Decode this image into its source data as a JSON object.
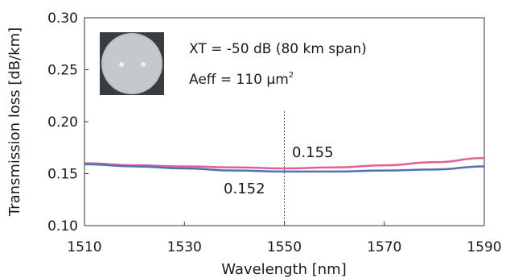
{
  "chart_data": {
    "type": "line",
    "xlabel": "Wavelength [nm]",
    "ylabel": "Transmission loss [dB/km]",
    "xlim": [
      1510,
      1590
    ],
    "ylim": [
      0.1,
      0.3
    ],
    "x_ticks": [
      "1510",
      "1530",
      "1550",
      "1570",
      "1590"
    ],
    "y_ticks": [
      "0.10",
      "0.15",
      "0.20",
      "0.25",
      "0.30"
    ],
    "x_tick_values": [
      1510,
      1530,
      1550,
      1570,
      1590
    ],
    "y_tick_values": [
      0.1,
      0.15,
      0.2,
      0.25,
      0.3
    ],
    "series": [
      {
        "color": "#e0609a",
        "x": [
          1510,
          1520,
          1530,
          1540,
          1550,
          1560,
          1570,
          1580,
          1590
        ],
        "y": [
          0.16,
          0.158,
          0.157,
          0.156,
          0.155,
          0.156,
          0.158,
          0.161,
          0.165
        ]
      },
      {
        "color": "#4f72b4",
        "x": [
          1510,
          1520,
          1530,
          1540,
          1550,
          1560,
          1570,
          1580,
          1590
        ],
        "y": [
          0.159,
          0.157,
          0.155,
          0.153,
          0.152,
          0.152,
          0.153,
          0.154,
          0.157
        ]
      }
    ],
    "marker_line_x": 1550,
    "annotations": [
      {
        "text": "0.155"
      },
      {
        "text": "0.152"
      }
    ],
    "inset": {
      "line1": "XT = -50 dB (80 km span)",
      "line2_main": "Aeff = 110 μm",
      "line2_sup": "2"
    },
    "grid": false
  }
}
